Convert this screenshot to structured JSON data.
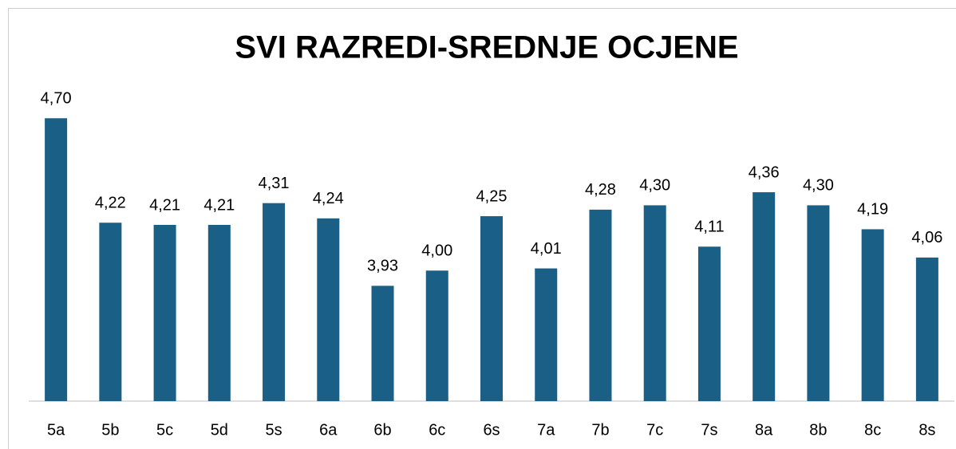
{
  "chart_data": {
    "type": "bar",
    "title": "SVI RAZREDI-SREDNJE OCJENE",
    "categories": [
      "5a",
      "5b",
      "5c",
      "5d",
      "5s",
      "6a",
      "6b",
      "6c",
      "6s",
      "7a",
      "7b",
      "7c",
      "7s",
      "8a",
      "8b",
      "8c",
      "8s"
    ],
    "values": [
      4.7,
      4.22,
      4.21,
      4.21,
      4.31,
      4.24,
      3.93,
      4.0,
      4.25,
      4.01,
      4.28,
      4.3,
      4.11,
      4.36,
      4.3,
      4.19,
      4.06
    ],
    "value_labels": [
      "4,70",
      "4,22",
      "4,21",
      "4,21",
      "4,31",
      "4,24",
      "3,93",
      "4,00",
      "4,25",
      "4,01",
      "4,28",
      "4,30",
      "4,11",
      "4,36",
      "4,30",
      "4,19",
      "4,06"
    ],
    "color": "#1a5f85",
    "ylim": [
      3.4,
      4.8
    ]
  }
}
